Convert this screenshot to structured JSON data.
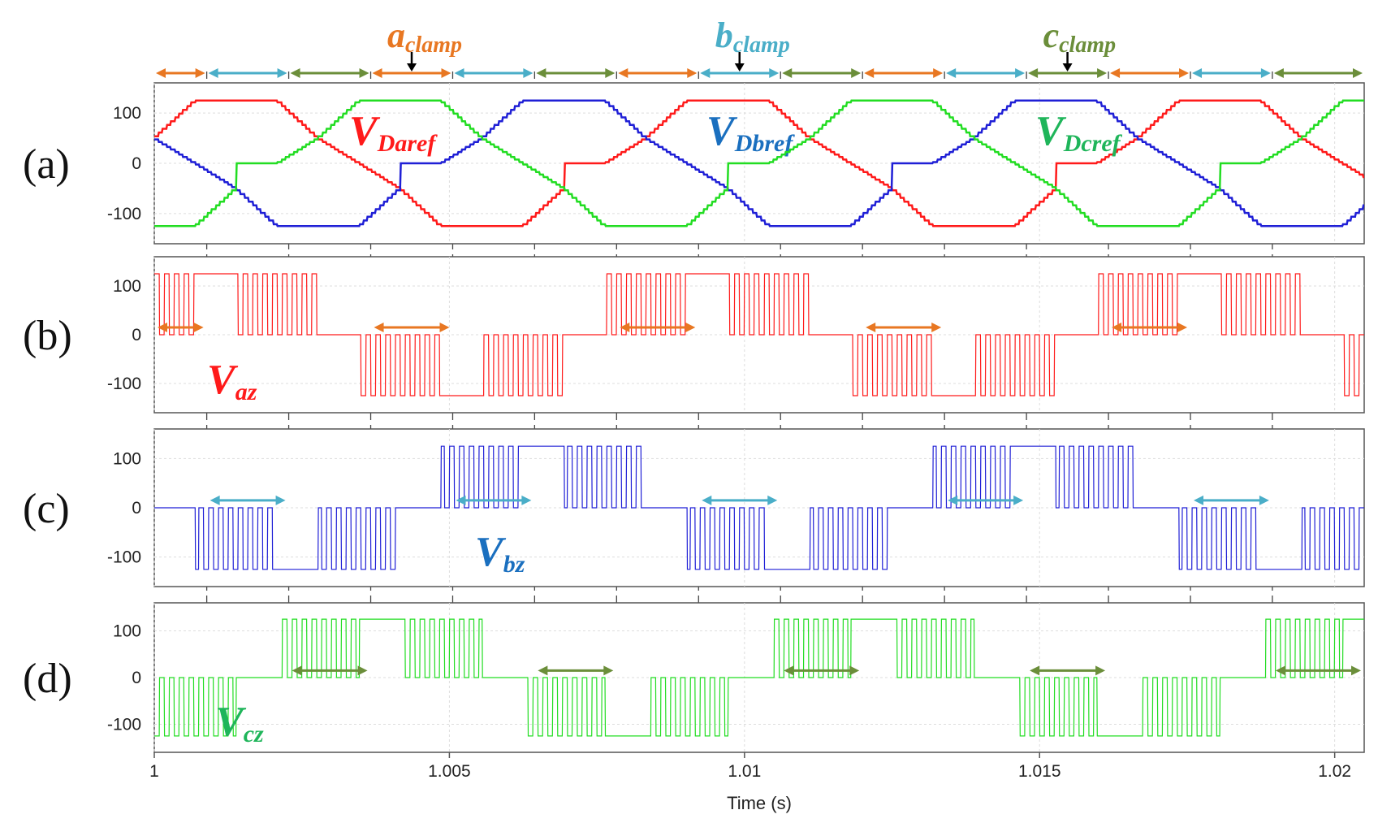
{
  "chart_data": {
    "type": "line",
    "xlabel": "Time (s)",
    "xlim": [
      1.0,
      1.0205
    ],
    "x_ticks": [
      "1",
      "1.005",
      "1.01",
      "1.015",
      "1.02"
    ],
    "x_tick_values": [
      1.0,
      1.005,
      1.01,
      1.015,
      1.02
    ],
    "ylim": [
      -160,
      160
    ],
    "y_ticks": [
      "100",
      "0",
      "-100"
    ],
    "y_tick_values": [
      100,
      0,
      -100
    ],
    "amplitude": 125,
    "sector_period_s": 0.0013889,
    "sector_boundaries": [
      1.0,
      1.000889,
      1.002278,
      1.003667,
      1.005056,
      1.006444,
      1.007833,
      1.009222,
      1.010611,
      1.012,
      1.013389,
      1.014778,
      1.016167,
      1.017556,
      1.018944,
      1.0205
    ],
    "clamp_sequence": [
      "a",
      "b",
      "c",
      "a",
      "b",
      "c",
      "a",
      "b",
      "c",
      "a",
      "b",
      "c",
      "a",
      "b",
      "c"
    ],
    "colors": {
      "phase_a": "#ff1a1a",
      "phase_b": "#1f1fd6",
      "phase_c": "#22dd22",
      "arrow_a": "#e87722",
      "arrow_b": "#4aaec8",
      "arrow_c": "#6b8e3a",
      "label_a": "#ff1a1a",
      "label_b": "#1a6fbf",
      "label_c": "#1fb55a",
      "clamp_b_text": "#4aaec8",
      "clamp_c_text": "#6b8e3a"
    },
    "top_labels": [
      {
        "main": "a",
        "sub": "clamp",
        "color": "#e87722"
      },
      {
        "main": "b",
        "sub": "clamp",
        "color": "#4aaec8"
      },
      {
        "main": "c",
        "sub": "clamp",
        "color": "#6b8e3a"
      }
    ],
    "panels": [
      {
        "label": "(a)",
        "series": [
          {
            "name": "V_Daref",
            "label_main": "V",
            "label_sub": "Daref",
            "phase": "a"
          },
          {
            "name": "V_Dbref",
            "label_main": "V",
            "label_sub": "Dbref",
            "phase": "b"
          },
          {
            "name": "V_Dcref",
            "label_main": "V",
            "label_sub": "Dcref",
            "phase": "c"
          }
        ]
      },
      {
        "label": "(b)",
        "series": [
          {
            "name": "V_az",
            "label_main": "V",
            "label_sub": "az",
            "phase": "a"
          }
        ]
      },
      {
        "label": "(c)",
        "series": [
          {
            "name": "V_bz",
            "label_main": "V",
            "label_sub": "bz",
            "phase": "b"
          }
        ]
      },
      {
        "label": "(d)",
        "series": [
          {
            "name": "V_cz",
            "label_main": "V",
            "label_sub": "cz",
            "phase": "c"
          }
        ]
      }
    ]
  }
}
